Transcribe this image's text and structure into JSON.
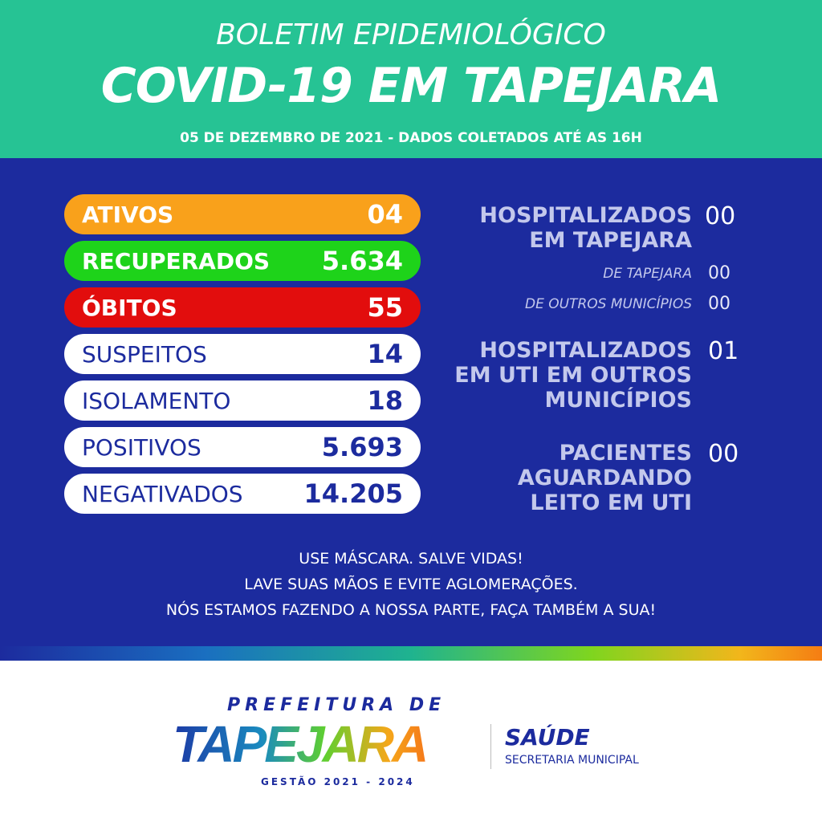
{
  "header": {
    "line1": "BOLETIM EPIDEMIOLÓGICO",
    "title": "COVID-19 EM TAPEJARA",
    "date": "05 DE DEZEMBRO DE 2021 - DADOS COLETADOS ATÉ AS 16H"
  },
  "stats": [
    {
      "label": "ATIVOS",
      "value": "04",
      "color": "#f9a11b"
    },
    {
      "label": "RECUPERADOS",
      "value": "5.634",
      "color": "#1ed31a"
    },
    {
      "label": "ÓBITOS",
      "value": "55",
      "color": "#e20d0d"
    },
    {
      "label": "SUSPEITOS",
      "value": "14"
    },
    {
      "label": "ISOLAMENTO",
      "value": "18"
    },
    {
      "label": "POSITIVOS",
      "value": "5.693"
    },
    {
      "label": "NEGATIVADOS",
      "value": "14.205"
    }
  ],
  "hospital": {
    "tapejara": {
      "label1": "HOSPITALIZADOS",
      "label2": "EM TAPEJARA",
      "value": "00",
      "sub": [
        {
          "label": "DE TAPEJARA",
          "value": "00"
        },
        {
          "label": "DE OUTROS MUNICÍPIOS",
          "value": "00"
        }
      ]
    },
    "uti": {
      "label1": "HOSPITALIZADOS",
      "label2": "EM UTI EM OUTROS",
      "label3": "MUNICÍPIOS",
      "value": "01"
    },
    "aguardando": {
      "label1": "PACIENTES",
      "label2": "AGUARDANDO",
      "label3": "LEITO EM UTI",
      "value": "00"
    }
  },
  "footer": {
    "line1": "USE MÁSCARA. SALVE VIDAS!",
    "line2": "LAVE SUAS MÃOS E EVITE AGLOMERAÇÕES.",
    "line3": "NÓS ESTAMOS FAZENDO A NOSSA PARTE, FAÇA TAMBÉM A SUA!"
  },
  "logo": {
    "prefeitura": "PREFEITURA DE",
    "city": "TAPEJARA",
    "gestao": "GESTÃO 2021 - 2024",
    "saude": "SAÚDE",
    "secretaria": "SECRETARIA MUNICIPAL"
  }
}
